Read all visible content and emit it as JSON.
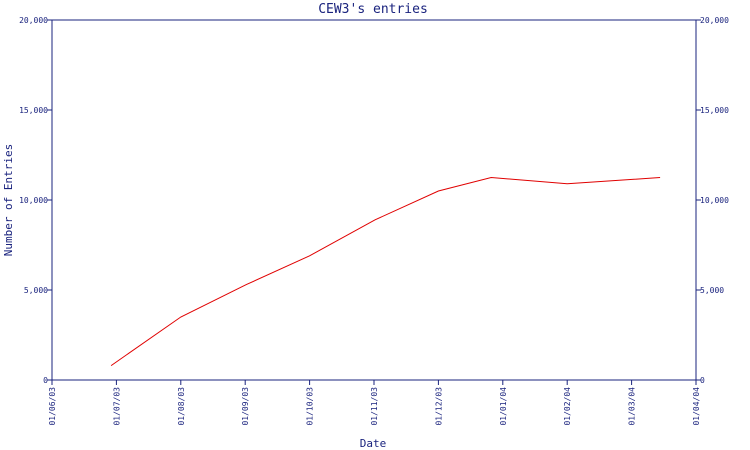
{
  "chart_data": {
    "type": "line",
    "title": "CEW3's entries",
    "xlabel": "Date",
    "ylabel": "Number of Entries",
    "x_ticks": [
      "01/06/03",
      "01/07/03",
      "01/08/03",
      "01/09/03",
      "01/10/03",
      "01/11/03",
      "01/12/03",
      "01/01/04",
      "01/02/04",
      "01/03/04",
      "01/04/04"
    ],
    "y_ticks": [
      "0",
      "5,000",
      "10,000",
      "15,000",
      "20,000"
    ],
    "ylim": [
      0,
      20000
    ],
    "xlim": [
      "2003-06-01",
      "2004-04-01"
    ],
    "grid": false,
    "colors": {
      "axis": "#1a237e",
      "line": "#e00000"
    },
    "series": [
      {
        "x": [
          "2003-06-29",
          "2003-08-01",
          "2003-09-01",
          "2003-10-01",
          "2003-11-01",
          "2003-12-01",
          "2003-12-26",
          "2004-01-31",
          "2004-03-15"
        ],
        "values": [
          800,
          3500,
          5300,
          6900,
          8900,
          10500,
          11250,
          10900,
          11250
        ]
      }
    ]
  }
}
